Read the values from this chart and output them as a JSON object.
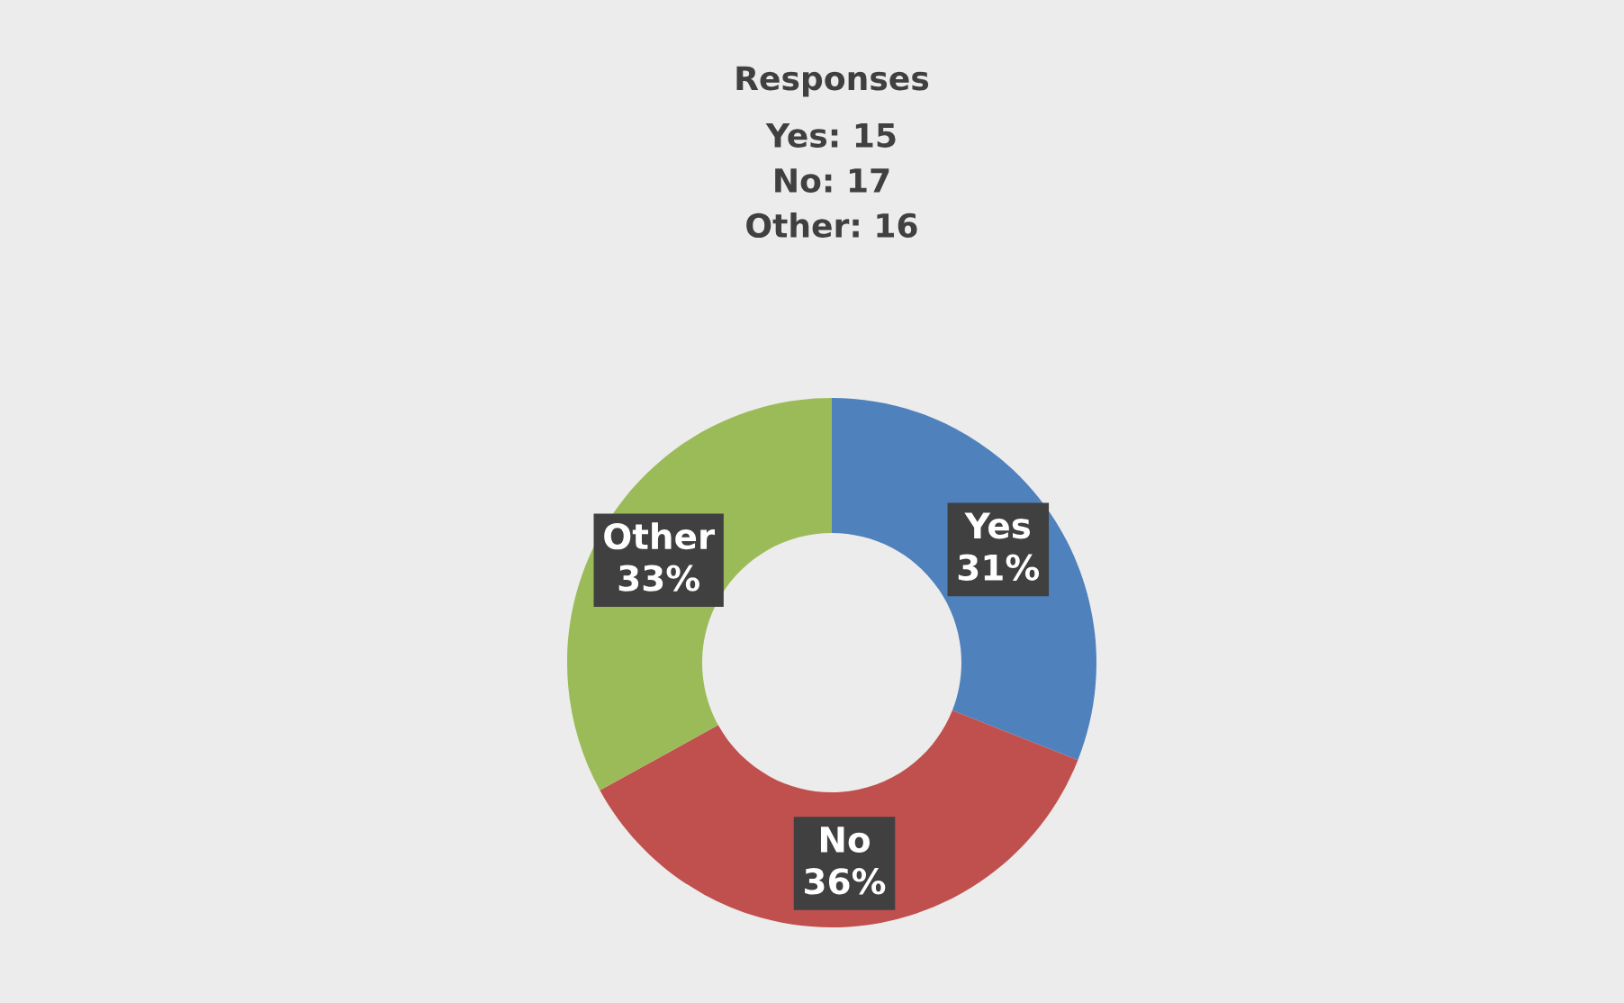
{
  "chart_data": {
    "type": "donut",
    "title": "Responses",
    "subtitle": "Yes: 15\nNo: 17\nOther: 16",
    "categories": [
      "Yes",
      "No",
      "Other"
    ],
    "values": [
      31,
      36,
      33
    ],
    "colors": [
      "#4f81bd",
      "#c0504d",
      "#9bbb59"
    ],
    "value_labels": [
      "31%",
      "36%",
      "33%"
    ],
    "legend": false
  }
}
